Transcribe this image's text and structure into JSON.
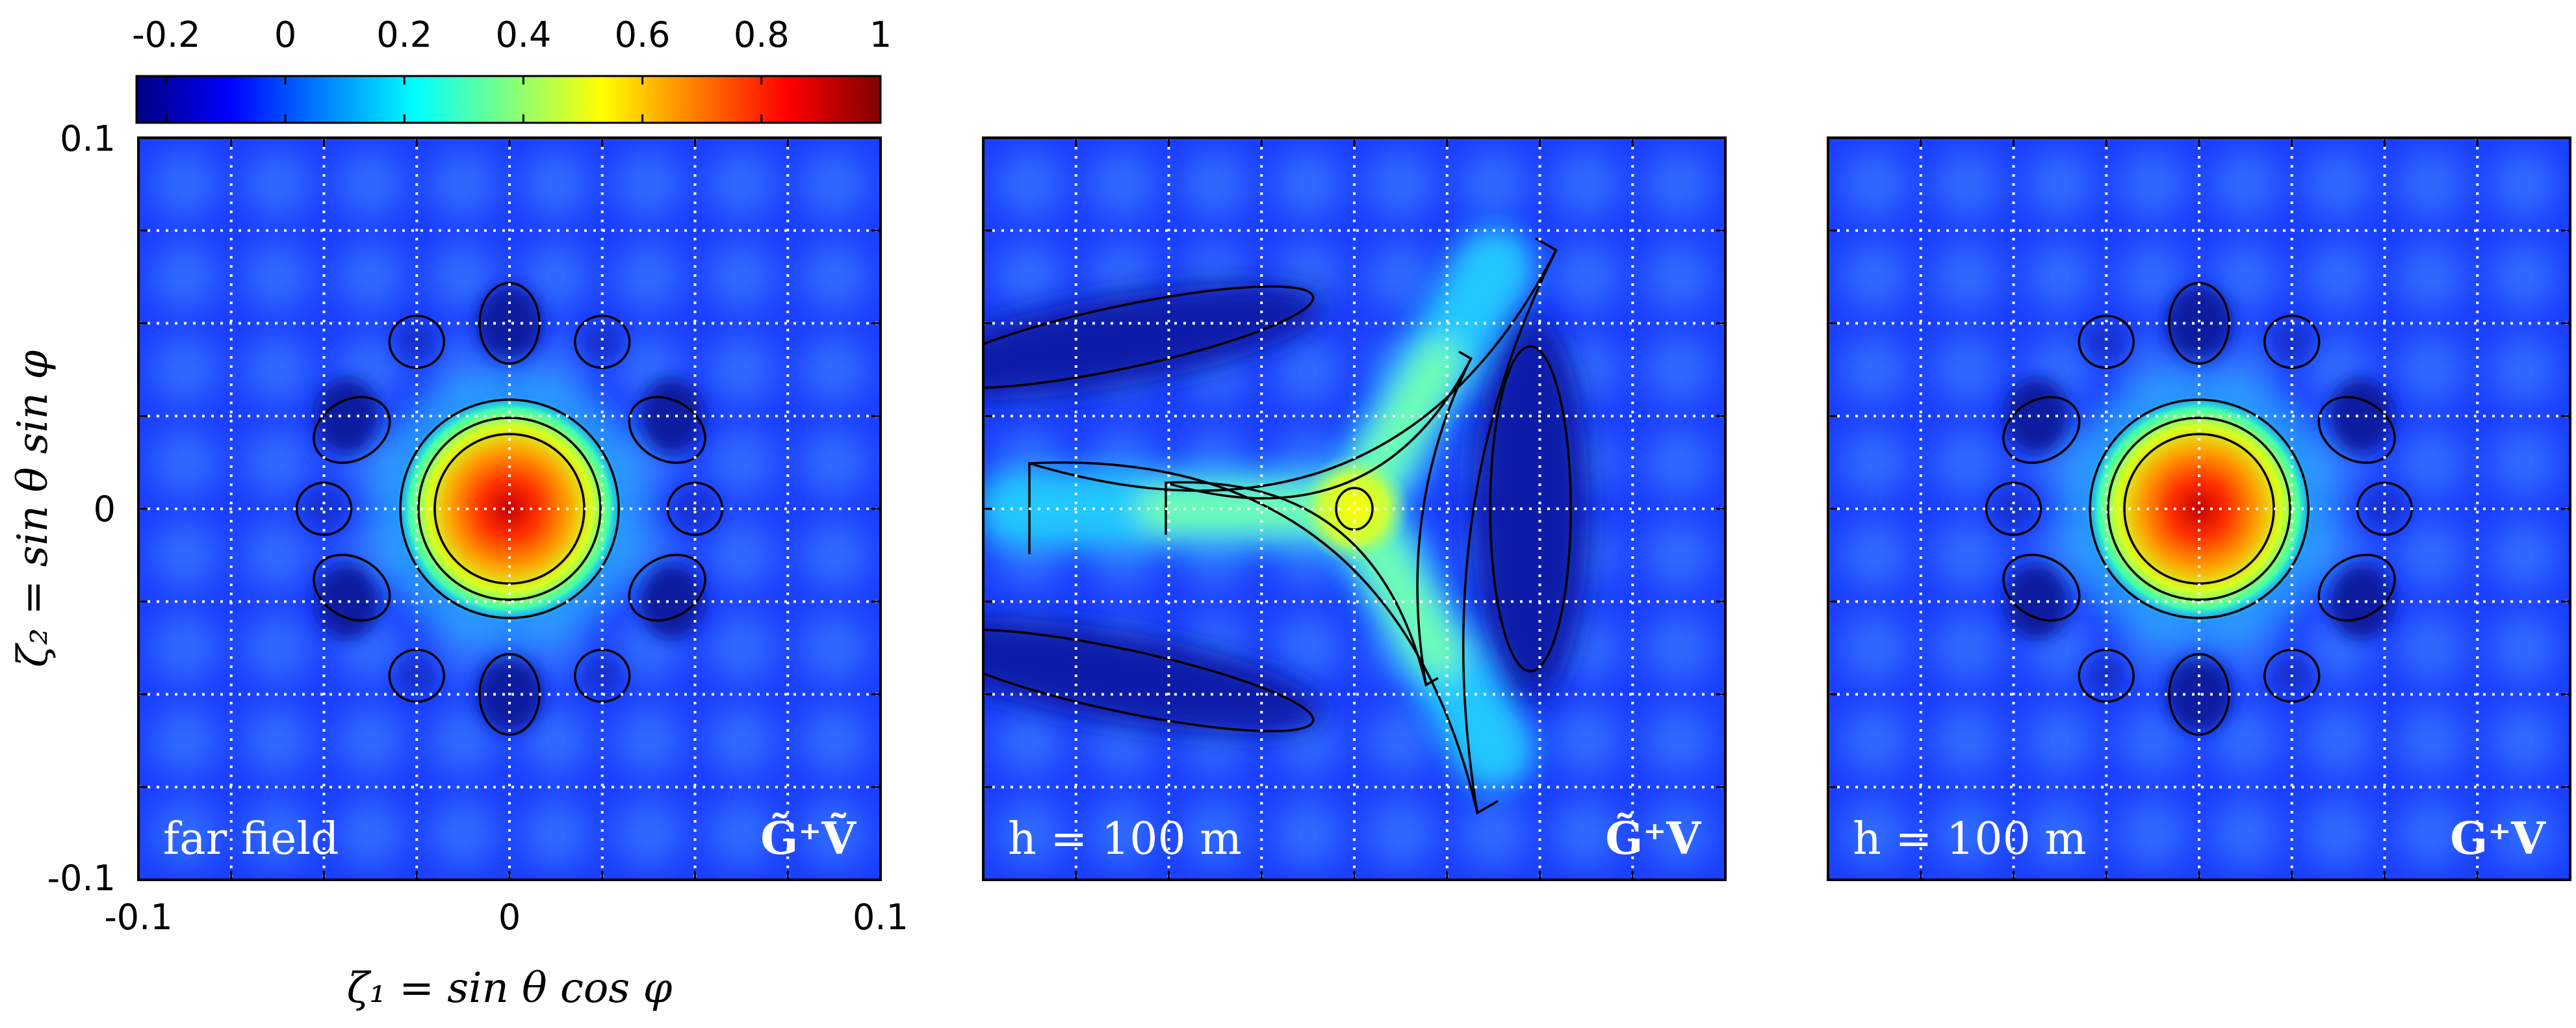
{
  "colorbar": {
    "tick_labels": [
      "-0.2",
      "0",
      "0.2",
      "0.4",
      "0.6",
      "0.8",
      "1"
    ],
    "range": [
      -0.25,
      1.0
    ],
    "colormap": "jet",
    "colors": [
      "#00007f",
      "#0000ff",
      "#007fff",
      "#00ffff",
      "#7fff7f",
      "#ffff00",
      "#ff7f00",
      "#ff0000",
      "#7f0000"
    ]
  },
  "axes": {
    "y_label": "ζ₂ = sin θ sin φ",
    "x_label": "ζ₁ = sin θ cos φ",
    "y_tick_labels": [
      "0.1",
      "0",
      "-0.1"
    ],
    "x_tick_labels": [
      "-0.1",
      "0",
      "0.1"
    ]
  },
  "chart_data": [
    {
      "type": "heatmap",
      "panel": "far-field",
      "annotation_left": "far field",
      "annotation_right": "G̃⁺Ṽ",
      "xlim": [
        -0.1,
        0.1
      ],
      "ylim": [
        -0.1,
        0.1
      ],
      "grid": true,
      "contours": true,
      "features": {
        "main_lobe_center": [
          0,
          0
        ],
        "main_lobe_peak": 1.0,
        "sidelobe_ring_count": 8
      }
    },
    {
      "type": "heatmap",
      "panel": "near-field-approx",
      "annotation_left": "h = 100 m",
      "annotation_right": "G̃⁺V",
      "xlim": [
        -0.1,
        0.1
      ],
      "ylim": [
        -0.1,
        0.1
      ],
      "grid": true,
      "contours": true,
      "features": {
        "peak_center": [
          0.0,
          0.0
        ],
        "peak_value": 0.5,
        "arms": 3
      }
    },
    {
      "type": "heatmap",
      "panel": "near-field-exact",
      "annotation_left": "h = 100 m",
      "annotation_right": "G⁺V",
      "xlim": [
        -0.1,
        0.1
      ],
      "ylim": [
        -0.1,
        0.1
      ],
      "grid": true,
      "contours": true,
      "features": {
        "main_lobe_center": [
          0,
          0
        ],
        "main_lobe_peak": 1.0,
        "sidelobe_ring_count": 8
      }
    }
  ]
}
